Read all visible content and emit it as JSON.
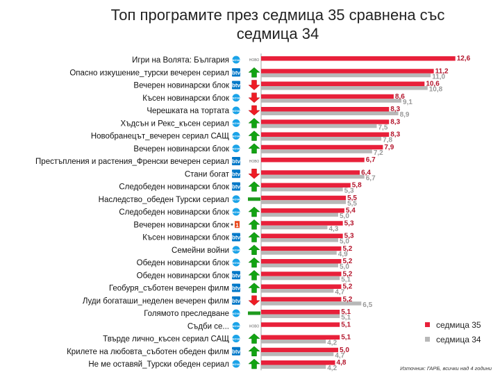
{
  "title_line1": "Топ програмите през седмица 35 сравнена със",
  "title_line2": "седмица 34",
  "source": "Източник: ГАРБ, всички над 4 години",
  "colors": {
    "week35": "#e8203a",
    "week34": "#b8b8b8",
    "up": "#13a313",
    "down": "#ee1c25",
    "same": "#1e9a1e"
  },
  "chart_data": {
    "type": "bar",
    "orientation": "horizontal",
    "title": "Топ програмите през седмица 35 сравнена със седмица 34",
    "categories": [
      "Игри на Волята: България",
      "Опасно изкушение_турски вечерен сериал",
      "Вечерен новинарски блок",
      "Късен новинарски блок",
      "Черешката на тортата",
      "Хъдсън и Рекс_късен сериал",
      "Новобранецът_вечерен сериал САЩ",
      "Вечерен новинарски блок",
      "Престъпления и растения_Френски вечерен сериал",
      "Стани богат",
      "Следобеден новинарски блок",
      "Наследство_обеден Турски сериал",
      "Следобеден новинарски блок",
      "Вечерен новинарски блок",
      "Късен новинарски блок",
      "Семейни войни",
      "Обеден новинарски блок",
      "Обеден новинарски блок",
      "Геобуря_съботен вечерен филм",
      "Луди богаташи_неделен вечерен филм",
      "Голямото преследване",
      "Съдби се...",
      "Твърде лично_късен сериал САЩ",
      "Крилете на любовта_съботен обеден филм",
      "Не ме оставяй_Турски обеден сериал"
    ],
    "channels": [
      "nova-logo",
      "btv-logo",
      "btv-logo",
      "nova-logo",
      "nova-logo",
      "nova-logo",
      "nova-logo",
      "nova-logo",
      "btv-logo",
      "btv-logo",
      "btv-logo",
      "nova-logo",
      "nova-logo",
      "bnt1-logo",
      "btv-logo",
      "nova-logo",
      "nova-logo",
      "btv-logo",
      "btv-logo",
      "btv-logo",
      "nova-logo",
      "nova-logo",
      "nova-logo",
      "btv-logo",
      "nova-logo"
    ],
    "channel_labels": {
      "nova-logo": "NOVA",
      "btv-logo": "btv",
      "bnt1-logo": "1"
    },
    "badges": [
      "НОВО",
      "",
      "",
      "",
      "",
      "",
      "",
      "",
      "НОВО",
      "",
      "",
      "",
      "",
      "",
      "",
      "",
      "",
      "",
      "",
      "",
      "",
      "НОВО",
      "",
      "",
      ""
    ],
    "trends": [
      "none",
      "up",
      "down",
      "down",
      "down",
      "up",
      "up",
      "up",
      "none",
      "down",
      "up",
      "same",
      "up",
      "up",
      "up",
      "up",
      "up",
      "up",
      "up",
      "down",
      "same",
      "none",
      "up",
      "up",
      "up"
    ],
    "series": [
      {
        "name": "седмица 35",
        "values": [
          12.6,
          11.2,
          10.6,
          8.6,
          8.3,
          8.3,
          8.3,
          7.9,
          6.7,
          6.4,
          5.8,
          5.5,
          5.4,
          5.3,
          5.3,
          5.2,
          5.2,
          5.2,
          5.2,
          5.2,
          5.1,
          5.1,
          5.1,
          5.0,
          4.8
        ]
      },
      {
        "name": "седмица 34",
        "values": [
          null,
          11.0,
          10.8,
          9.1,
          8.9,
          7.5,
          7.8,
          7.2,
          null,
          6.7,
          5.3,
          5.5,
          5.0,
          4.3,
          5.0,
          4.9,
          5.0,
          5.1,
          4.7,
          6.5,
          5.1,
          null,
          4.2,
          4.7,
          4.2
        ]
      }
    ],
    "value_labels_35": [
      "12,6",
      "11,2",
      "10,6",
      "8,6",
      "8,3",
      "8,3",
      "8,3",
      "7,9",
      "6,7",
      "6,4",
      "5,8",
      "5,5",
      "5,4",
      "5,3",
      "5,3",
      "5,2",
      "5,2",
      "5,2",
      "5,2",
      "5,2",
      "5,1",
      "5,1",
      "5,1",
      "5,0",
      "4,8"
    ],
    "value_labels_34": [
      "",
      "11,0",
      "10,8",
      "9,1",
      "8,9",
      "7,5",
      "7,8",
      "7,2",
      "",
      "6,7",
      "5,3",
      "5,5",
      "5,0",
      "4,3",
      "5,0",
      "4,9",
      "5,0",
      "5,1",
      "4,7",
      "6,5",
      "5,1",
      "",
      "4,2",
      "4,7",
      "4,2"
    ],
    "legend_position": "bottom-right",
    "grid": false
  }
}
